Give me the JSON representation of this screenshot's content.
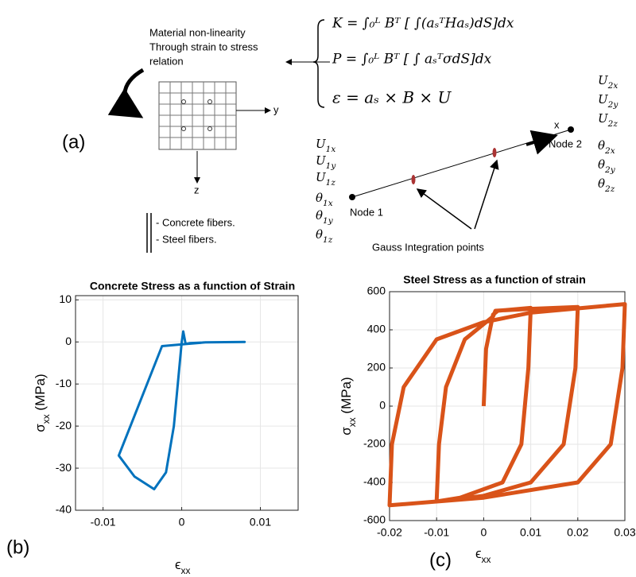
{
  "diagram": {
    "panel_label": "(a)",
    "note": [
      "Material non-linearity",
      "Through strain to stress",
      "relation"
    ],
    "equations": [
      "K = ∫₀ᴸ Bᵀ [ ∫(aₛᵀHaₛ)dS]dx",
      "P = ∫₀ᴸ Bᵀ [ ∫ aₛᵀσdS]dx",
      "ε = aₛ × B × U"
    ],
    "axes": {
      "y": "y",
      "z": "z",
      "x": "x"
    },
    "nodes": [
      "Node 1",
      "Node 2"
    ],
    "gauss_label": "Gauss Integration points",
    "legend": [
      "- Concrete fibers.",
      "- Steel fibers."
    ],
    "dof_node1": [
      {
        "base": "U",
        "sub": "1x"
      },
      {
        "base": "U",
        "sub": "1y"
      },
      {
        "base": "U",
        "sub": "1z"
      },
      {
        "base": "θ",
        "sub": "1x"
      },
      {
        "base": "θ",
        "sub": "1y"
      },
      {
        "base": "θ",
        "sub": "1z"
      }
    ],
    "dof_node2": [
      {
        "base": "U",
        "sub": "2x"
      },
      {
        "base": "U",
        "sub": "2y"
      },
      {
        "base": "U",
        "sub": "2z"
      },
      {
        "base": "θ",
        "sub": "2x"
      },
      {
        "base": "θ",
        "sub": "2y"
      },
      {
        "base": "θ",
        "sub": "2z"
      }
    ]
  },
  "chart_data": [
    {
      "type": "line",
      "panel_label": "(b)",
      "title": "Concrete Stress as a function of Strain",
      "x_label": {
        "symbol": "ϵ",
        "subscript": "xx"
      },
      "y_label": {
        "symbol": "σ",
        "subscript": "xx",
        "unit": "(MPa)"
      },
      "xlim": [
        -0.0135,
        0.0148
      ],
      "ylim": [
        -40,
        11
      ],
      "xticks": [
        -0.01,
        0,
        0.01
      ],
      "yticks": [
        -40,
        -30,
        -20,
        -10,
        0,
        10
      ],
      "grid": true,
      "x": [
        0,
        0.0002,
        0.0005,
        0.001,
        0.003,
        0.008,
        0.003,
        0.0005,
        -0.0025,
        -0.008,
        -0.006,
        -0.0035,
        -0.002,
        -0.001,
        0
      ],
      "series": [
        {
          "color": "#0072bd",
          "values": [
            0,
            2.5,
            -0.5,
            -0.3,
            -0.1,
            0,
            -0.1,
            -0.5,
            -1,
            -27,
            -32,
            -35,
            -31,
            -20,
            0
          ]
        }
      ]
    },
    {
      "type": "line",
      "panel_label": "(c)",
      "title": "Steel Stress as a function of strain",
      "x_label": {
        "symbol": "ϵ",
        "subscript": "xx"
      },
      "y_label": {
        "symbol": "σ",
        "subscript": "xx",
        "unit": "(MPa)"
      },
      "xlim": [
        -0.02,
        0.03
      ],
      "ylim": [
        -600,
        600
      ],
      "xticks": [
        -0.02,
        -0.01,
        0,
        0.01,
        0.02,
        0.03
      ],
      "yticks": [
        -600,
        -400,
        -200,
        0,
        200,
        400,
        600
      ],
      "grid": true,
      "x": [
        0,
        0.0005,
        0.002,
        0.003,
        0.01,
        0.0095,
        0.008,
        0.004,
        -0.005,
        -0.01,
        -0.0095,
        -0.008,
        -0.004,
        0.002,
        0.0025,
        0.01,
        0.02,
        0.0195,
        0.017,
        0.01,
        0,
        -0.01,
        -0.02,
        -0.0195,
        -0.017,
        -0.01,
        0,
        0.01,
        0.03,
        0.0295,
        0.027,
        0.02,
        0,
        -0.02
      ],
      "series": [
        {
          "color": "#d95319",
          "values": [
            0,
            300,
            480,
            500,
            515,
            200,
            -200,
            -400,
            -480,
            -500,
            -200,
            100,
            350,
            470,
            500,
            510,
            520,
            200,
            -200,
            -400,
            -470,
            -500,
            -520,
            -200,
            100,
            350,
            440,
            490,
            535,
            200,
            -200,
            -400,
            -480,
            -520
          ]
        }
      ]
    }
  ]
}
